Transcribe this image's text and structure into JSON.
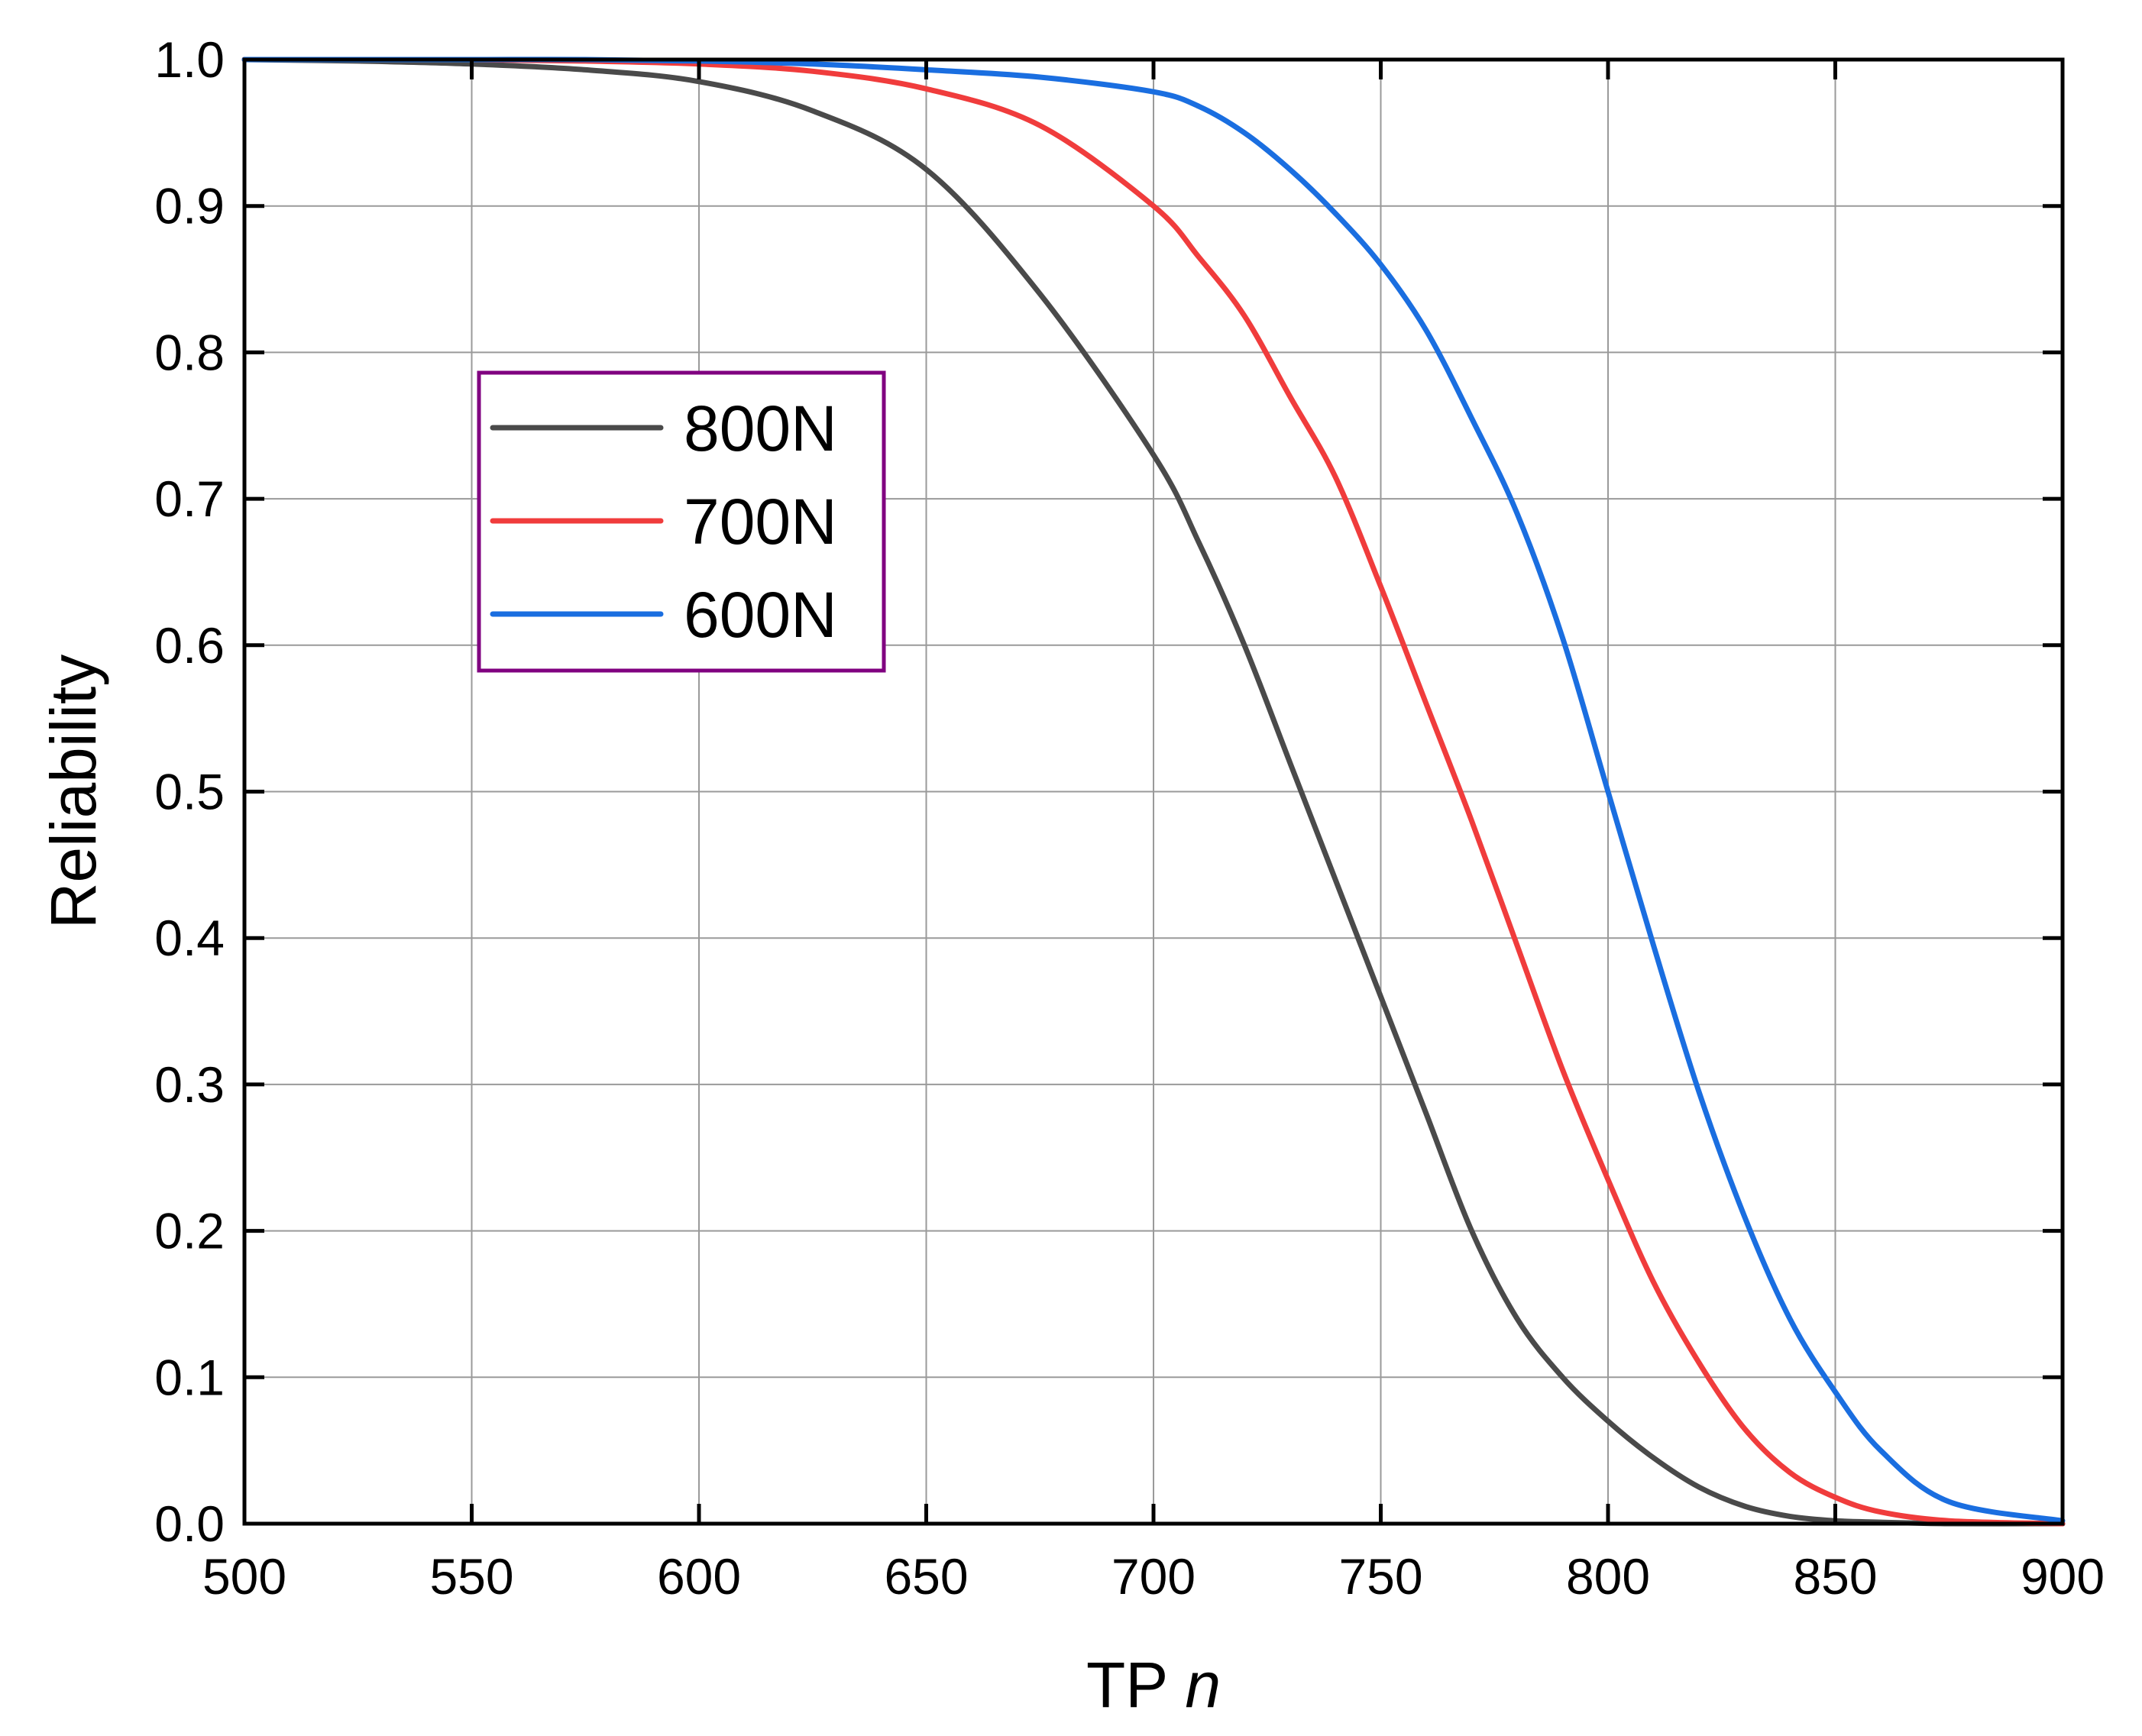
{
  "chart_data": {
    "type": "line",
    "title": "",
    "xlabel": "TP",
    "xlabel_italic": "n",
    "ylabel": "Reliability",
    "xlim": [
      500,
      900
    ],
    "ylim": [
      0.0,
      1.0
    ],
    "grid": true,
    "legend_position": "upper-left",
    "x_ticks": [
      500,
      550,
      600,
      650,
      700,
      750,
      800,
      850,
      900
    ],
    "x_tick_labels": [
      "500",
      "550",
      "600",
      "650",
      "700",
      "750",
      "800",
      "850",
      "900"
    ],
    "y_ticks": [
      0.0,
      0.1,
      0.2,
      0.3,
      0.4,
      0.5,
      0.6,
      0.7,
      0.8,
      0.9,
      1.0
    ],
    "y_tick_labels": [
      "0.0",
      "0.1",
      "0.2",
      "0.3",
      "0.4",
      "0.5",
      "0.6",
      "0.7",
      "0.8",
      "0.9",
      "1.0"
    ],
    "x": [
      500,
      525,
      550,
      575,
      600,
      625,
      650,
      675,
      700,
      710,
      720,
      730,
      740,
      750,
      760,
      770,
      780,
      790,
      800,
      810,
      820,
      830,
      840,
      850,
      860,
      875,
      900
    ],
    "series": [
      {
        "name": "800N",
        "color": "#4a4a4a",
        "values": [
          1.0,
          0.999,
          0.997,
          0.993,
          0.985,
          0.965,
          0.925,
          0.84,
          0.73,
          0.67,
          0.6,
          0.52,
          0.44,
          0.36,
          0.28,
          0.2,
          0.14,
          0.1,
          0.07,
          0.045,
          0.025,
          0.012,
          0.005,
          0.002,
          0.001,
          0.0,
          0.0
        ]
      },
      {
        "name": "700N",
        "color": "#f03c3c",
        "values": [
          1.0,
          1.0,
          1.0,
          0.999,
          0.997,
          0.992,
          0.98,
          0.955,
          0.9,
          0.865,
          0.825,
          0.77,
          0.715,
          0.64,
          0.56,
          0.48,
          0.395,
          0.31,
          0.235,
          0.165,
          0.11,
          0.065,
          0.035,
          0.018,
          0.008,
          0.002,
          0.0
        ]
      },
      {
        "name": "600N",
        "color": "#1a6ee0",
        "values": [
          1.0,
          1.0,
          1.0,
          1.0,
          0.999,
          0.997,
          0.993,
          0.988,
          0.978,
          0.968,
          0.95,
          0.925,
          0.895,
          0.86,
          0.815,
          0.755,
          0.69,
          0.605,
          0.5,
          0.395,
          0.295,
          0.21,
          0.14,
          0.09,
          0.05,
          0.015,
          0.002
        ]
      }
    ]
  },
  "colors": {
    "legend_border": "#800080",
    "grid": "#9a9a9a",
    "axis": "#000000"
  }
}
